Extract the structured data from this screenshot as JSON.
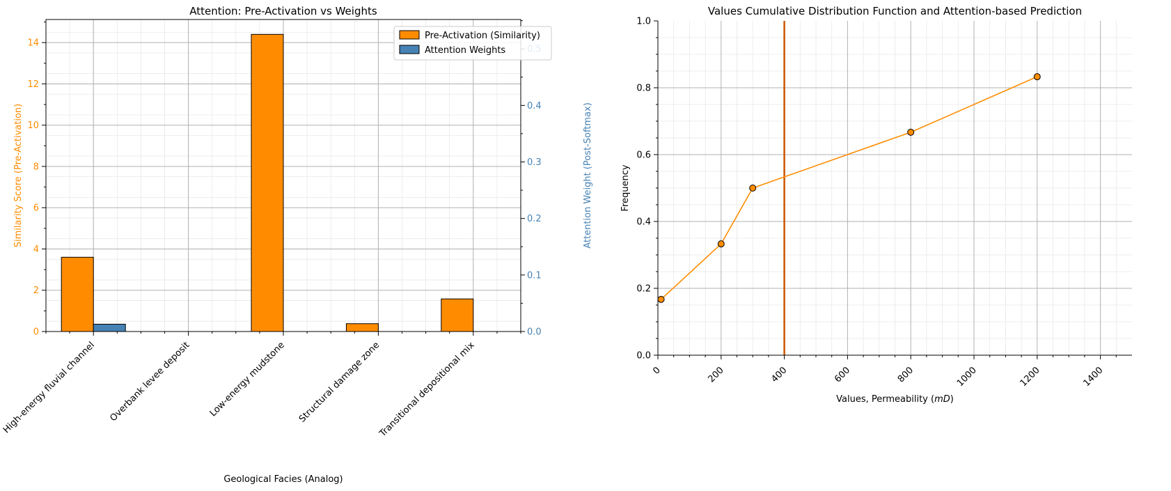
{
  "colors": {
    "pre_activation": "#ff8c00",
    "attention": "#4682b4",
    "prediction_line": "#cc5500",
    "cdf_line": "#ff8c00"
  },
  "chart_data": [
    {
      "type": "bar",
      "title": "Attention: Pre-Activation vs Weights",
      "xlabel": "Geological Facies (Analog)",
      "ylabel": "Similarity Score (Pre-Activation)",
      "ylabel_right": "Attention Weight (Post-Softmax)",
      "categories": [
        "High-energy fluvial channel",
        "Overbank levee deposit",
        "Low-energy mudstone",
        "Structural damage zone",
        "Transitional depositional mix"
      ],
      "series": [
        {
          "name": "Pre-Activation (Similarity)",
          "axis": "left",
          "values": [
            3.6,
            0.0,
            14.4,
            0.38,
            1.58
          ]
        },
        {
          "name": "Attention Weights",
          "axis": "right",
          "values": [
            0.013,
            0.0,
            0.0,
            0.0,
            0.0
          ]
        }
      ],
      "ylim": [
        0,
        15.12
      ],
      "ylim_right": [
        0,
        0.552
      ],
      "yticks": [
        0,
        2,
        4,
        6,
        8,
        10,
        12,
        14
      ],
      "yticks_right": [
        0.0,
        0.1,
        0.2,
        0.3,
        0.4,
        0.5
      ],
      "legend_position": "top-right",
      "grid": true
    },
    {
      "type": "line",
      "title": "Values Cumulative Distribution Function and Attention-based Prediction",
      "xlabel": "Values, Permeability",
      "xlabel_unit": "mD",
      "ylabel": "Frequency",
      "x": [
        10,
        200,
        300,
        800,
        1200
      ],
      "y": [
        0.167,
        0.333,
        0.5,
        0.667,
        0.833
      ],
      "prediction_x": 400,
      "xlim": [
        0,
        1500
      ],
      "ylim": [
        0,
        1.0
      ],
      "xticks": [
        0,
        200,
        400,
        600,
        800,
        1000,
        1200,
        1400
      ],
      "yticks": [
        0.0,
        0.2,
        0.4,
        0.6,
        0.8,
        1.0
      ],
      "grid": true
    }
  ]
}
